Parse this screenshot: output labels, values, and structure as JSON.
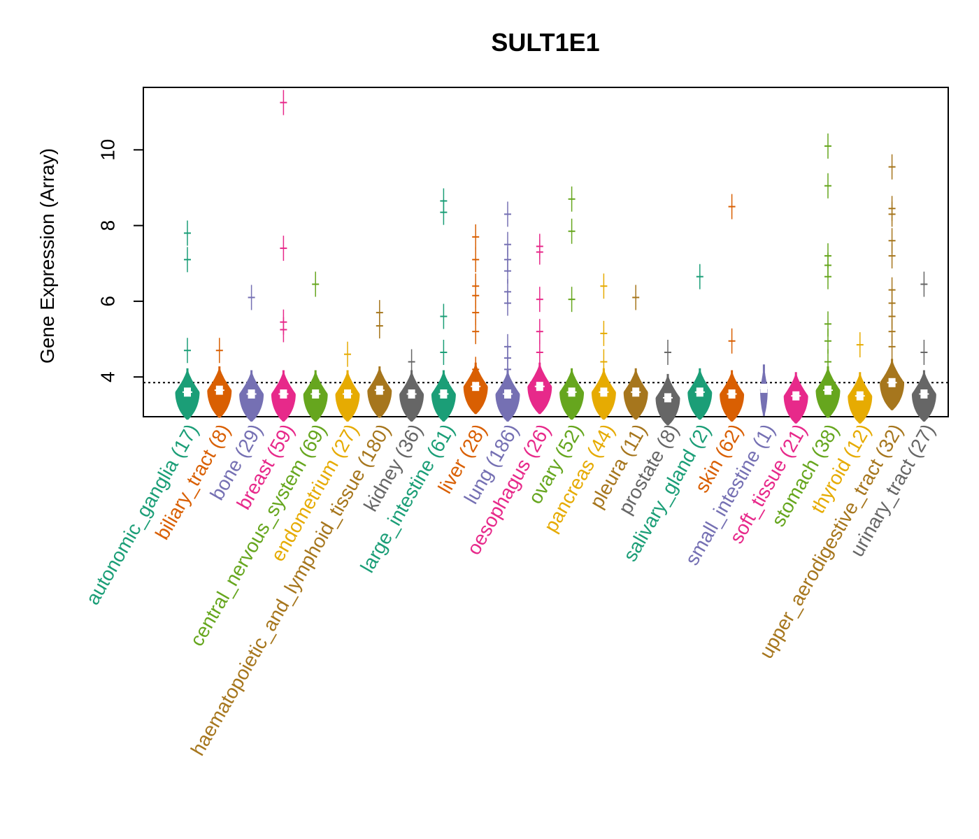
{
  "chart_data": {
    "type": "violin",
    "title": "SULT1E1",
    "xlabel": "",
    "ylabel": "Gene Expression (Array)",
    "ylim": [
      2.95,
      11.65
    ],
    "yticks": [
      4,
      6,
      8,
      10
    ],
    "reference_line": 3.85,
    "grid": false,
    "legend": "none",
    "categories": [
      {
        "label": "autonomic_ganglia (17)",
        "color": "#1b9e77",
        "median": 3.6,
        "outliers": [
          7.8,
          7.1,
          4.7
        ]
      },
      {
        "label": "biliary_tract (8)",
        "color": "#d95f02",
        "median": 3.65,
        "outliers": [
          4.7
        ]
      },
      {
        "label": "bone (29)",
        "color": "#7570b3",
        "median": 3.55,
        "outliers": [
          6.1
        ]
      },
      {
        "label": "breast (59)",
        "color": "#e7298a",
        "median": 3.55,
        "outliers": [
          11.25,
          7.4,
          5.45,
          5.25
        ]
      },
      {
        "label": "central_nervous_system (69)",
        "color": "#66a61e",
        "median": 3.55,
        "outliers": [
          6.45
        ]
      },
      {
        "label": "endometrium (27)",
        "color": "#e6ab02",
        "median": 3.55,
        "outliers": [
          4.6
        ]
      },
      {
        "label": "haematopoietic_and_lymphoid_tissue (180)",
        "color": "#a6761d",
        "median": 3.65,
        "outliers": [
          5.7,
          5.35
        ]
      },
      {
        "label": "kidney (36)",
        "color": "#666666",
        "median": 3.55,
        "outliers": [
          4.4
        ]
      },
      {
        "label": "large_intestine (61)",
        "color": "#1b9e77",
        "median": 3.55,
        "outliers": [
          8.65,
          8.35,
          5.6,
          4.65
        ]
      },
      {
        "label": "liver (28)",
        "color": "#d95f02",
        "median": 3.75,
        "outliers": [
          7.7,
          7.1,
          6.4,
          6.15,
          5.7,
          5.2,
          4.2
        ]
      },
      {
        "label": "lung (186)",
        "color": "#7570b3",
        "median": 3.55,
        "outliers": [
          8.3,
          7.5,
          7.1,
          6.8,
          6.25,
          5.95,
          4.8,
          4.5,
          4.2
        ]
      },
      {
        "label": "oesophagus (26)",
        "color": "#e7298a",
        "median": 3.75,
        "outliers": [
          7.45,
          7.3,
          6.05,
          5.2,
          4.65
        ]
      },
      {
        "label": "ovary (52)",
        "color": "#66a61e",
        "median": 3.6,
        "outliers": [
          8.7,
          7.85,
          6.05
        ]
      },
      {
        "label": "pancreas (44)",
        "color": "#e6ab02",
        "median": 3.6,
        "outliers": [
          6.4,
          5.15,
          4.4
        ]
      },
      {
        "label": "pleura (11)",
        "color": "#a6761d",
        "median": 3.6,
        "outliers": [
          6.1
        ]
      },
      {
        "label": "prostate (8)",
        "color": "#666666",
        "median": 3.45,
        "outliers": [
          4.65
        ]
      },
      {
        "label": "salivary_gland (2)",
        "color": "#1b9e77",
        "median": 3.6,
        "outliers": [
          6.65
        ]
      },
      {
        "label": "skin (62)",
        "color": "#d95f02",
        "median": 3.55,
        "outliers": [
          8.5,
          4.95
        ]
      },
      {
        "label": "small_intestine (1)",
        "color": "#7570b3",
        "median": 3.7,
        "outliers": []
      },
      {
        "label": "soft_tissue (21)",
        "color": "#e7298a",
        "median": 3.5,
        "outliers": []
      },
      {
        "label": "stomach (38)",
        "color": "#66a61e",
        "median": 3.65,
        "outliers": [
          10.1,
          9.05,
          7.2,
          6.95,
          6.65,
          5.4,
          4.95,
          4.4
        ]
      },
      {
        "label": "thyroid (12)",
        "color": "#e6ab02",
        "median": 3.5,
        "outliers": [
          4.85
        ]
      },
      {
        "label": "upper_aerodigestive_tract (32)",
        "color": "#a6761d",
        "median": 3.85,
        "outliers": [
          9.55,
          8.45,
          8.3,
          7.6,
          7.2,
          6.3,
          5.95,
          5.6,
          5.2,
          4.8
        ]
      },
      {
        "label": "urinary_tract (27)",
        "color": "#666666",
        "median": 3.55,
        "outliers": [
          6.45,
          4.65
        ]
      }
    ]
  }
}
